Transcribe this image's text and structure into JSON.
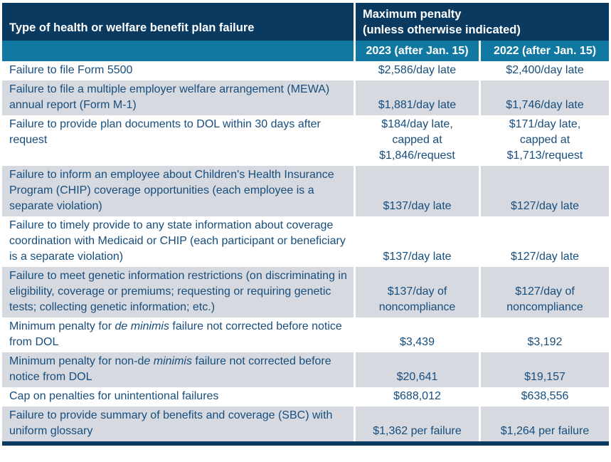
{
  "table": {
    "header": {
      "type_column_label": "Type of health or welfare benefit plan failure",
      "max_penalty_label": "Maximum penalty\n(unless otherwise indicated)"
    },
    "subheader": {
      "col_2023": "2023 (after Jan. 15)",
      "col_2022": "2022 (after Jan. 15)"
    },
    "rows": [
      {
        "failure": [
          {
            "text": "Failure to file Form 5500"
          }
        ],
        "y2023": "$2,586/day late",
        "y2022": "$2,400/day late"
      },
      {
        "failure": [
          {
            "text": "Failure to file a multiple employer welfare arrangement (MEWA) annual report (Form M-1)"
          }
        ],
        "y2023": "$1,881/day late",
        "y2022": "$1,746/day late"
      },
      {
        "failure": [
          {
            "text": "Failure to provide plan documents to DOL within 30 days after request"
          }
        ],
        "y2023": "$184/day late,\ncapped at\n$1,846/request",
        "y2022": "$171/day late,\ncapped at\n$1,713/request"
      },
      {
        "failure": [
          {
            "text": "Failure to inform an employee about Children's Health Insurance Program (CHIP) coverage opportunities (each employee is a separate violation)"
          }
        ],
        "y2023": "$137/day late",
        "y2022": "$127/day late"
      },
      {
        "failure": [
          {
            "text": "Failure to timely provide to any state information about coverage coordination with Medicaid or CHIP (each participant or beneficiary is a separate violation)"
          }
        ],
        "y2023": "$137/day late",
        "y2022": "$127/day late"
      },
      {
        "failure": [
          {
            "text": "Failure to meet genetic information restrictions (on discriminating in eligibility, coverage or premiums; requesting or requiring genetic tests; collecting genetic information; etc.)"
          }
        ],
        "y2023": "$137/day of\nnoncompliance",
        "y2022": "$127/day of\nnoncompliance"
      },
      {
        "failure": [
          {
            "text": "Minimum penalty for "
          },
          {
            "text": "de minimis",
            "italic": true
          },
          {
            "text": " failure not corrected before notice from DOL"
          }
        ],
        "y2023": "$3,439",
        "y2022": "$3,192"
      },
      {
        "failure": [
          {
            "text": "Minimum penalty for non-d"
          },
          {
            "text": "e minimis",
            "italic": true
          },
          {
            "text": " failure not corrected before notice from DOL"
          }
        ],
        "y2023": "$20,641",
        "y2022": "$19,157"
      },
      {
        "failure": [
          {
            "text": "Cap on penalties for unintentional failures"
          }
        ],
        "y2023": "$688,012",
        "y2022": "$638,556"
      },
      {
        "failure": [
          {
            "text": "Failure to provide summary of benefits and coverage (SBC) with uniform glossary"
          }
        ],
        "y2023": "$1,362 per failure",
        "y2022": "$1,264 per failure"
      }
    ],
    "colors": {
      "header_bg": "#0a3a60",
      "subheader_bg": "#1178a1",
      "row_alt_bg": "#d6d9e0",
      "body_text": "#174e7d",
      "header_text": "#ffffff"
    }
  }
}
